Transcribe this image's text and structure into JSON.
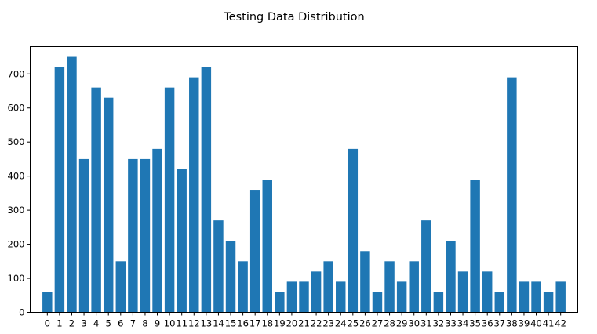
{
  "chart_data": {
    "type": "bar",
    "title": "Testing Data Distribution",
    "xlabel": "",
    "ylabel": "",
    "categories": [
      "0",
      "1",
      "2",
      "3",
      "4",
      "5",
      "6",
      "7",
      "8",
      "9",
      "10",
      "11",
      "12",
      "13",
      "14",
      "15",
      "16",
      "17",
      "18",
      "19",
      "20",
      "21",
      "22",
      "23",
      "24",
      "25",
      "26",
      "27",
      "28",
      "29",
      "30",
      "31",
      "32",
      "33",
      "34",
      "35",
      "36",
      "37",
      "38",
      "39",
      "40",
      "41",
      "42"
    ],
    "values": [
      60,
      720,
      750,
      450,
      660,
      630,
      150,
      450,
      450,
      480,
      660,
      420,
      690,
      720,
      270,
      210,
      150,
      360,
      390,
      60,
      90,
      90,
      120,
      150,
      90,
      480,
      180,
      60,
      150,
      90,
      150,
      270,
      60,
      210,
      120,
      390,
      120,
      60,
      690,
      90,
      90,
      60,
      90
    ],
    "ylim": [
      0,
      780
    ],
    "yticks": [
      0,
      100,
      200,
      300,
      400,
      500,
      600,
      700
    ],
    "grid": false,
    "legend": "none",
    "bar_color": "#1f77b4"
  }
}
